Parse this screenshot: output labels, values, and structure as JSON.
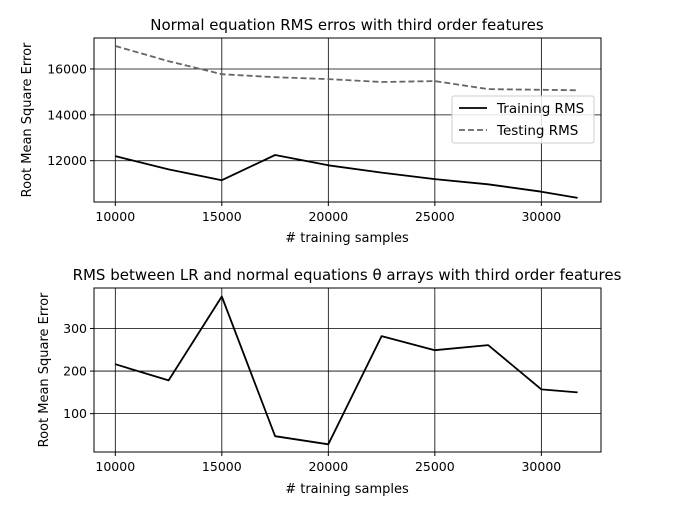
{
  "chart_data": [
    {
      "type": "line",
      "title": "Normal equation RMS erros with third order features",
      "xlabel": "# training samples",
      "ylabel": "Root Mean Square Error",
      "xlim": [
        9000,
        32800
      ],
      "ylim": [
        10200,
        17350
      ],
      "xticks": [
        10000,
        15000,
        20000,
        25000,
        30000
      ],
      "yticks": [
        12000,
        14000,
        16000
      ],
      "grid": true,
      "legend": "center-right",
      "x": [
        10000,
        12500,
        15000,
        17500,
        20000,
        22500,
        25000,
        27500,
        30000,
        31700
      ],
      "series": [
        {
          "name": "Training RMS",
          "style": "solid",
          "color": "#000000",
          "values": [
            12200,
            11620,
            11150,
            12250,
            11800,
            11480,
            11200,
            10970,
            10650,
            10380
          ]
        },
        {
          "name": "Testing RMS",
          "style": "dashed",
          "color": "#666666",
          "values": [
            17000,
            16340,
            15770,
            15640,
            15560,
            15430,
            15470,
            15120,
            15090,
            15070
          ]
        }
      ]
    },
    {
      "type": "line",
      "title": "RMS between LR and normal equations θ arrays with third order features",
      "xlabel": "# training samples",
      "ylabel": "Root Mean Square Error",
      "xlim": [
        9000,
        32800
      ],
      "ylim": [
        10,
        395
      ],
      "xticks": [
        10000,
        15000,
        20000,
        25000,
        30000
      ],
      "yticks": [
        100,
        200,
        300
      ],
      "grid": true,
      "x": [
        10000,
        12500,
        15000,
        17500,
        20000,
        22500,
        25000,
        27500,
        30000,
        31700
      ],
      "series": [
        {
          "style": "solid",
          "color": "#000000",
          "values": [
            216,
            178,
            375,
            47,
            28,
            282,
            249,
            261,
            157,
            150
          ]
        }
      ]
    }
  ]
}
